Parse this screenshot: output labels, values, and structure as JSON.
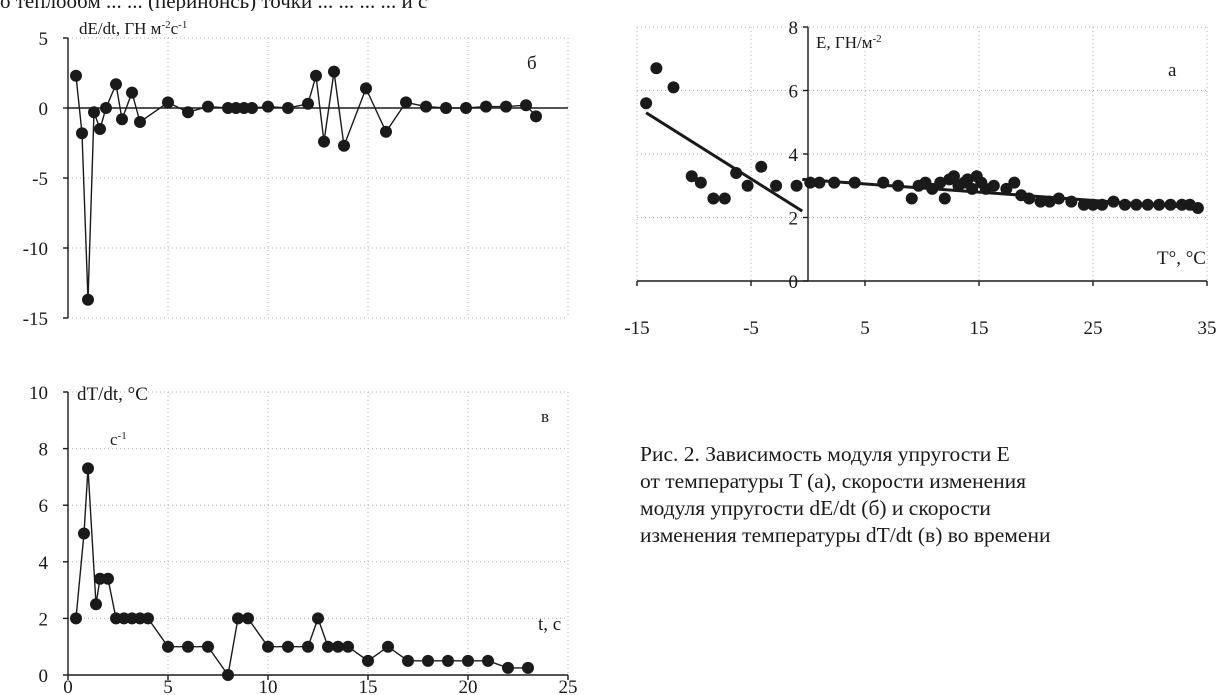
{
  "top_text": "о теплообм   ... ... (перинонсь) точки ... ... ... ... и с",
  "caption": [
    "Рис. 2. Зависимость модуля упругости E",
    "от температуры T (а), скорости изменения",
    "модуля упругости dE/dt (б) и скорости",
    "изменения температуры dT/dt (в) во времени"
  ],
  "chart_data": [
    {
      "id": "b",
      "type": "line",
      "panel_label": "б",
      "ylabel": "dE/dt, ГН м-2с-1",
      "ylim": [
        -15,
        5
      ],
      "yticks": [
        5,
        0,
        -5,
        -10,
        -15
      ],
      "xlim": [
        0,
        25
      ],
      "grid": true,
      "x": [
        0.4,
        0.7,
        1.0,
        1.3,
        1.6,
        1.9,
        2.4,
        2.7,
        3.2,
        3.6,
        5.0,
        6.0,
        7.0,
        8.0,
        8.4,
        8.8,
        9.2,
        10.0,
        11.0,
        12.0,
        12.4,
        12.8,
        13.3,
        13.8,
        14.9,
        15.9,
        16.9,
        17.9,
        18.9,
        19.9,
        20.9,
        21.9,
        22.9,
        23.4
      ],
      "values": [
        2.3,
        -1.8,
        -13.7,
        -0.3,
        -1.5,
        0.0,
        1.7,
        -0.8,
        1.1,
        -1.0,
        0.4,
        -0.3,
        0.1,
        0.0,
        0.0,
        0.0,
        0.0,
        0.1,
        0.0,
        0.3,
        2.3,
        -2.4,
        2.6,
        -2.7,
        1.4,
        -1.7,
        0.4,
        0.1,
        0.0,
        0.0,
        0.1,
        0.1,
        0.2,
        -0.6
      ]
    },
    {
      "id": "a",
      "type": "scatter",
      "panel_label": "а",
      "ylabel": "E, ГН/м-2",
      "xlabel": "T°, °C",
      "xlim": [
        -15,
        35
      ],
      "xticks": [
        -15,
        -5,
        5,
        15,
        25,
        35
      ],
      "ylim": [
        0,
        8
      ],
      "yticks": [
        0,
        2,
        4,
        6,
        8
      ],
      "grid": true,
      "points": [
        [
          -14.2,
          5.6
        ],
        [
          -13.3,
          6.7
        ],
        [
          -11.8,
          6.1
        ],
        [
          -10.2,
          3.3
        ],
        [
          -9.4,
          3.1
        ],
        [
          -8.3,
          2.6
        ],
        [
          -7.3,
          2.6
        ],
        [
          -6.3,
          3.4
        ],
        [
          -5.3,
          3.0
        ],
        [
          -4.1,
          3.6
        ],
        [
          -2.8,
          3.0
        ],
        [
          -1.0,
          3.0
        ],
        [
          0.2,
          3.1
        ],
        [
          1.0,
          3.1
        ],
        [
          2.3,
          3.1
        ],
        [
          4.1,
          3.1
        ],
        [
          6.6,
          3.1
        ],
        [
          7.9,
          3.0
        ],
        [
          9.1,
          2.6
        ],
        [
          9.7,
          3.0
        ],
        [
          10.3,
          3.1
        ],
        [
          10.9,
          2.9
        ],
        [
          11.6,
          3.1
        ],
        [
          12.0,
          2.6
        ],
        [
          12.4,
          3.2
        ],
        [
          12.8,
          3.3
        ],
        [
          13.2,
          3.0
        ],
        [
          13.7,
          3.1
        ],
        [
          14.0,
          3.2
        ],
        [
          14.4,
          2.9
        ],
        [
          14.8,
          3.3
        ],
        [
          15.2,
          3.1
        ],
        [
          15.6,
          2.9
        ],
        [
          16.3,
          3.0
        ],
        [
          17.4,
          2.9
        ],
        [
          18.1,
          3.1
        ],
        [
          18.7,
          2.7
        ],
        [
          19.4,
          2.6
        ],
        [
          20.4,
          2.5
        ],
        [
          21.2,
          2.5
        ],
        [
          22.0,
          2.6
        ],
        [
          23.1,
          2.5
        ],
        [
          24.2,
          2.4
        ],
        [
          25.0,
          2.4
        ],
        [
          25.8,
          2.4
        ],
        [
          26.8,
          2.5
        ],
        [
          27.8,
          2.4
        ],
        [
          28.8,
          2.4
        ],
        [
          29.8,
          2.4
        ],
        [
          30.8,
          2.4
        ],
        [
          31.8,
          2.4
        ],
        [
          32.8,
          2.4
        ],
        [
          33.5,
          2.4
        ],
        [
          34.2,
          2.3
        ]
      ],
      "trendlines": [
        {
          "x": [
            -14.2,
            -0.5
          ],
          "y": [
            5.3,
            2.2
          ]
        },
        {
          "x": [
            -0.5,
            34.2
          ],
          "y": [
            3.2,
            2.3
          ]
        }
      ]
    },
    {
      "id": "v",
      "type": "line",
      "panel_label": "в",
      "ylabel": "dT/dt, °C",
      "ylabel_unit": "c-1",
      "xlabel": "t, c",
      "xlim": [
        0,
        25
      ],
      "xticks": [
        0,
        5,
        10,
        15,
        20,
        25
      ],
      "ylim": [
        0,
        10
      ],
      "yticks": [
        10,
        8,
        6,
        4,
        2,
        0
      ],
      "grid": true,
      "x": [
        0.4,
        0.8,
        1.0,
        1.4,
        1.6,
        2.0,
        2.4,
        2.8,
        3.2,
        3.6,
        4.0,
        5.0,
        6.0,
        7.0,
        8.0,
        8.5,
        9.0,
        10.0,
        11.0,
        12.0,
        12.5,
        13.0,
        13.5,
        14.0,
        15.0,
        16.0,
        17.0,
        18.0,
        19.0,
        20.0,
        21.0,
        22.0,
        23.0
      ],
      "values": [
        2.0,
        5.0,
        7.3,
        2.5,
        3.4,
        3.4,
        2.0,
        2.0,
        2.0,
        2.0,
        2.0,
        1.0,
        1.0,
        1.0,
        0.0,
        2.0,
        2.0,
        1.0,
        1.0,
        1.0,
        2.0,
        1.0,
        1.0,
        1.0,
        0.5,
        1.0,
        0.5,
        0.5,
        0.5,
        0.5,
        0.5,
        0.25,
        0.25
      ]
    }
  ]
}
